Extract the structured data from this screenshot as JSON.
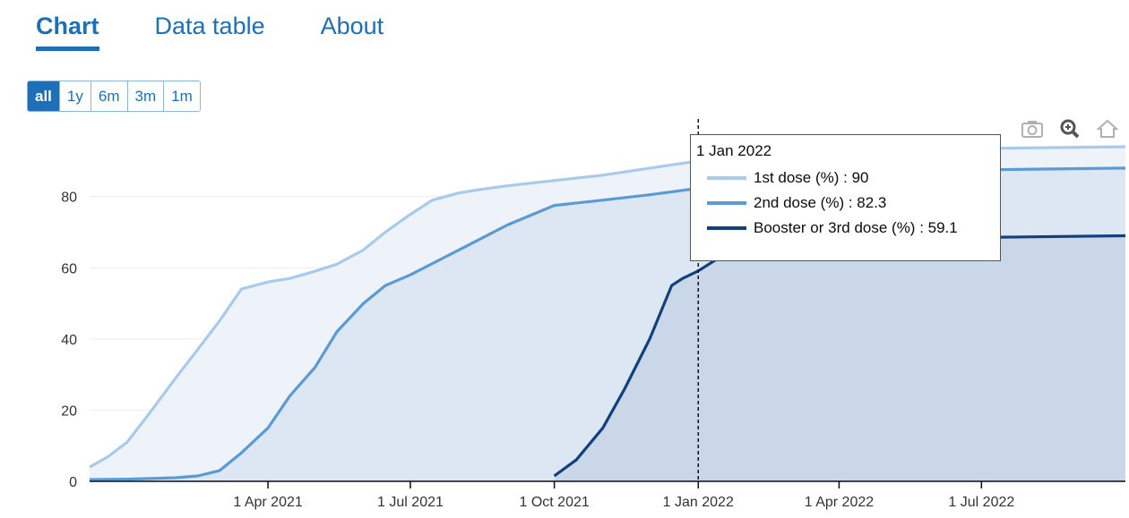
{
  "tabs": [
    {
      "label": "Chart",
      "active": true
    },
    {
      "label": "Data table",
      "active": false
    },
    {
      "label": "About",
      "active": false
    }
  ],
  "range_buttons": [
    {
      "label": "all",
      "active": true
    },
    {
      "label": "1y",
      "active": false
    },
    {
      "label": "6m",
      "active": false
    },
    {
      "label": "3m",
      "active": false
    },
    {
      "label": "1m",
      "active": false
    }
  ],
  "modebar_icons": [
    "camera-icon",
    "zoom-icon",
    "home-icon"
  ],
  "tooltip": {
    "date": "1 Jan 2022",
    "rows": [
      {
        "label": "1st dose (%) : 90",
        "color": "#a8cbeb"
      },
      {
        "label": "2nd dose (%) : 82.3",
        "color": "#5b9bd5"
      },
      {
        "label": "Booster or 3rd dose (%) : 59.1",
        "color": "#12407c"
      }
    ]
  },
  "chart_data": {
    "type": "area",
    "x_ticks": [
      "1 Apr 2021",
      "1 Jul 2021",
      "1 Oct 2021",
      "1 Jan 2022",
      "1 Apr 2022",
      "1 Jul 2022"
    ],
    "y_ticks": [
      0,
      20,
      40,
      60,
      80
    ],
    "ylim": [
      0,
      95
    ],
    "xlim": [
      "2020-12-08",
      "2022-10-01"
    ],
    "grid": "horizontal",
    "hover_line": "2022-01-01",
    "series": [
      {
        "label": "1st dose (%)",
        "color": "#a8cbeb",
        "fill": "#eef3fa",
        "points": [
          [
            "2020-12-08",
            4
          ],
          [
            "2020-12-20",
            7
          ],
          [
            "2021-01-01",
            11
          ],
          [
            "2021-01-15",
            19
          ],
          [
            "2021-02-01",
            29
          ],
          [
            "2021-02-15",
            37
          ],
          [
            "2021-03-01",
            45
          ],
          [
            "2021-03-15",
            54
          ],
          [
            "2021-04-01",
            56
          ],
          [
            "2021-04-15",
            57
          ],
          [
            "2021-05-01",
            59
          ],
          [
            "2021-05-15",
            61
          ],
          [
            "2021-06-01",
            65
          ],
          [
            "2021-06-15",
            70
          ],
          [
            "2021-07-01",
            75
          ],
          [
            "2021-07-15",
            79
          ],
          [
            "2021-08-01",
            81
          ],
          [
            "2021-08-15",
            82
          ],
          [
            "2021-09-01",
            83
          ],
          [
            "2021-10-01",
            84.5
          ],
          [
            "2021-11-01",
            86
          ],
          [
            "2021-12-01",
            88
          ],
          [
            "2022-01-01",
            90
          ],
          [
            "2022-04-01",
            92.5
          ],
          [
            "2022-07-01",
            93.5
          ],
          [
            "2022-10-01",
            94
          ]
        ]
      },
      {
        "label": "2nd dose (%)",
        "color": "#5b9bd5",
        "fill": "#dce7f3",
        "points": [
          [
            "2020-12-08",
            0.5
          ],
          [
            "2021-01-01",
            0.6
          ],
          [
            "2021-02-01",
            1
          ],
          [
            "2021-02-15",
            1.5
          ],
          [
            "2021-03-01",
            3
          ],
          [
            "2021-03-15",
            8
          ],
          [
            "2021-04-01",
            15
          ],
          [
            "2021-04-15",
            24
          ],
          [
            "2021-05-01",
            32
          ],
          [
            "2021-05-15",
            42
          ],
          [
            "2021-06-01",
            50
          ],
          [
            "2021-06-15",
            55
          ],
          [
            "2021-07-01",
            58
          ],
          [
            "2021-08-01",
            65
          ],
          [
            "2021-09-01",
            72
          ],
          [
            "2021-10-01",
            77.5
          ],
          [
            "2021-11-01",
            79
          ],
          [
            "2021-12-01",
            80.5
          ],
          [
            "2022-01-01",
            82.3
          ],
          [
            "2022-04-01",
            86
          ],
          [
            "2022-07-01",
            87.5
          ],
          [
            "2022-10-01",
            88
          ]
        ]
      },
      {
        "label": "Booster or 3rd dose (%)",
        "color": "#12407c",
        "fill": "#c9d7e8",
        "points": [
          [
            "2021-10-01",
            1.5
          ],
          [
            "2021-10-15",
            6
          ],
          [
            "2021-11-01",
            15
          ],
          [
            "2021-11-15",
            26
          ],
          [
            "2021-12-01",
            40
          ],
          [
            "2021-12-15",
            55
          ],
          [
            "2021-12-22",
            57
          ],
          [
            "2022-01-01",
            59.1
          ],
          [
            "2022-01-15",
            63
          ],
          [
            "2022-02-01",
            65
          ],
          [
            "2022-04-01",
            67.5
          ],
          [
            "2022-07-01",
            68.5
          ],
          [
            "2022-10-01",
            69
          ]
        ]
      }
    ]
  }
}
